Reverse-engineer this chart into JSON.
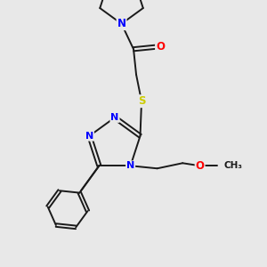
{
  "bg": "#e8e8e8",
  "bond_color": "#1a1a1a",
  "atom_colors": {
    "N": "#0000ff",
    "O": "#ff0000",
    "S": "#cccc00",
    "C": "#1a1a1a"
  },
  "lw": 1.4,
  "fs": 8.0,
  "xlim": [
    0,
    1
  ],
  "ylim": [
    0,
    1
  ]
}
